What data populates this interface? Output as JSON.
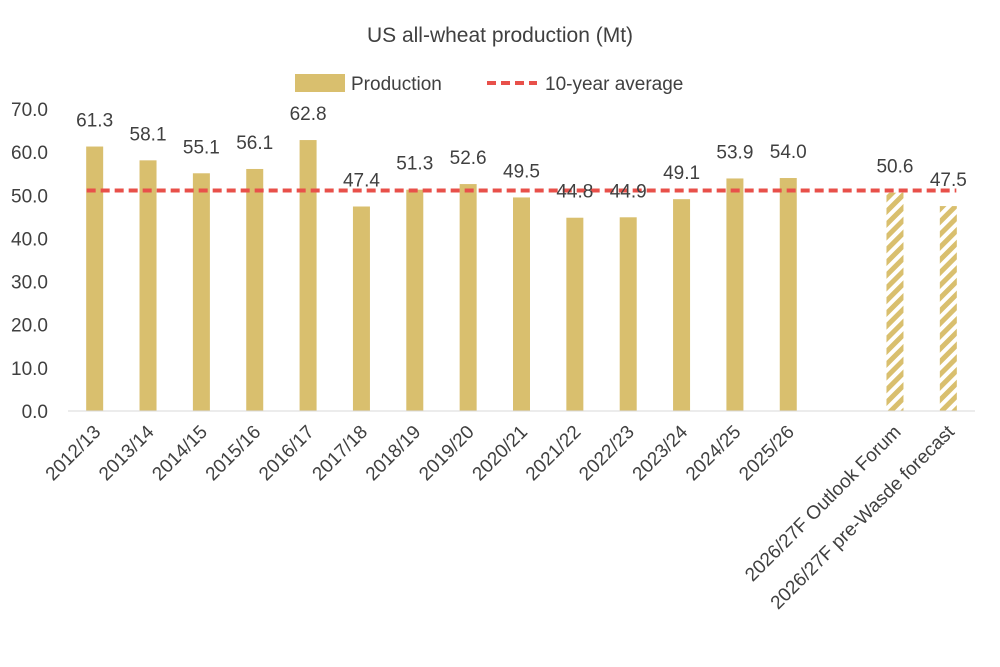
{
  "chart_data": {
    "type": "bar",
    "title": "US all-wheat production (Mt)",
    "xlabel": "",
    "ylabel": "",
    "ylim": [
      0,
      70
    ],
    "yticks": [
      "0.0",
      "10.0",
      "20.0",
      "30.0",
      "40.0",
      "50.0",
      "60.0",
      "70.0"
    ],
    "grid": false,
    "legend_position": "top",
    "categories": [
      "2012/13",
      "2013/14",
      "2014/15",
      "2015/16",
      "2016/17",
      "2017/18",
      "2018/19",
      "2019/20",
      "2020/21",
      "2021/22",
      "2022/23",
      "2023/24",
      "2024/25",
      "2025/26",
      "",
      "2026/27F Outlook Forum",
      "2026/27F pre-Wasde forecast"
    ],
    "series": [
      {
        "name": "Production",
        "type": "bar",
        "color": "#d9bf6e",
        "values": [
          61.3,
          58.1,
          55.1,
          56.1,
          62.8,
          47.4,
          51.3,
          52.6,
          49.5,
          44.8,
          44.9,
          49.1,
          53.9,
          54.0,
          null,
          50.6,
          47.5
        ],
        "labels": [
          "61.3",
          "58.1",
          "55.1",
          "56.1",
          "62.8",
          "47.4",
          "51.3",
          "52.6",
          "49.5",
          "44.8",
          "44.9",
          "49.1",
          "53.9",
          "54.0",
          "",
          "50.6",
          "47.5"
        ],
        "hatched": [
          false,
          false,
          false,
          false,
          false,
          false,
          false,
          false,
          false,
          false,
          false,
          false,
          false,
          false,
          false,
          true,
          true
        ]
      },
      {
        "name": "10-year average",
        "type": "line",
        "style": "dashed",
        "color": "#e8504a",
        "value": 51.1
      }
    ]
  }
}
